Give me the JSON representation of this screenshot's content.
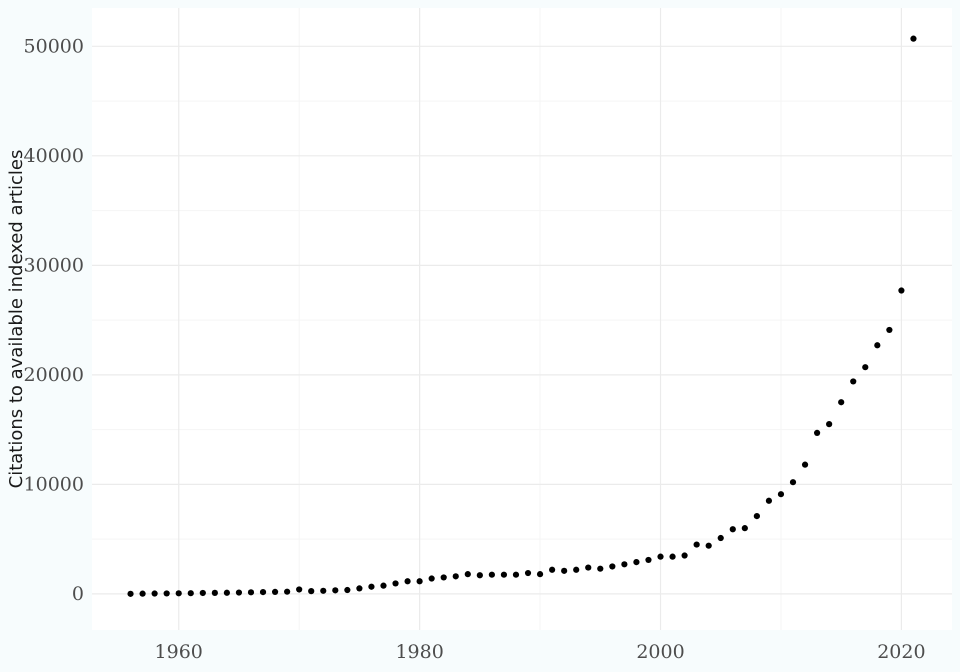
{
  "chart_data": {
    "type": "scatter",
    "title": "",
    "xlabel": "",
    "ylabel": "Citations to available indexed articles",
    "xlim": [
      1952.8,
      2024.2
    ],
    "ylim": [
      -3300,
      53500
    ],
    "x_ticks": [
      1960,
      1980,
      2000,
      2020
    ],
    "y_ticks": [
      0,
      10000,
      20000,
      30000,
      40000,
      50000
    ],
    "grid": true,
    "legend": "none",
    "colors": {
      "background": "#f7fcfd",
      "panel": "#ffffff",
      "grid_major": "#ebebeb",
      "grid_minor": "#f5f5f5",
      "point": "#000000"
    },
    "series": [
      {
        "x": [
          1956,
          1957,
          1958,
          1959,
          1960,
          1961,
          1962,
          1963,
          1964,
          1965,
          1966,
          1967,
          1968,
          1969,
          1970,
          1971,
          1972,
          1973,
          1974,
          1975,
          1976,
          1977,
          1978,
          1979,
          1980,
          1981,
          1982,
          1983,
          1984,
          1985,
          1986,
          1987,
          1988,
          1989,
          1990,
          1991,
          1992,
          1993,
          1994,
          1995,
          1996,
          1997,
          1998,
          1999,
          2000,
          2001,
          2002,
          2003,
          2004,
          2005,
          2006,
          2007,
          2008,
          2009,
          2010,
          2011,
          2012,
          2013,
          2014,
          2015,
          2016,
          2017,
          2018,
          2019,
          2020,
          2021
        ],
        "y": [
          0,
          20,
          30,
          40,
          50,
          60,
          80,
          90,
          100,
          120,
          140,
          160,
          180,
          200,
          400,
          250,
          280,
          320,
          350,
          500,
          650,
          750,
          950,
          1150,
          1150,
          1400,
          1500,
          1600,
          1800,
          1700,
          1750,
          1750,
          1750,
          1900,
          1800,
          2200,
          2100,
          2200,
          2400,
          2300,
          2500,
          2700,
          2900,
          3100,
          3400,
          3400,
          3500,
          4500,
          4400,
          5100,
          5900,
          6000,
          7100,
          8500,
          9100,
          10200,
          11800,
          14700,
          15500,
          17500,
          19400,
          20700,
          22700,
          24100,
          27700,
          50700
        ]
      }
    ]
  }
}
